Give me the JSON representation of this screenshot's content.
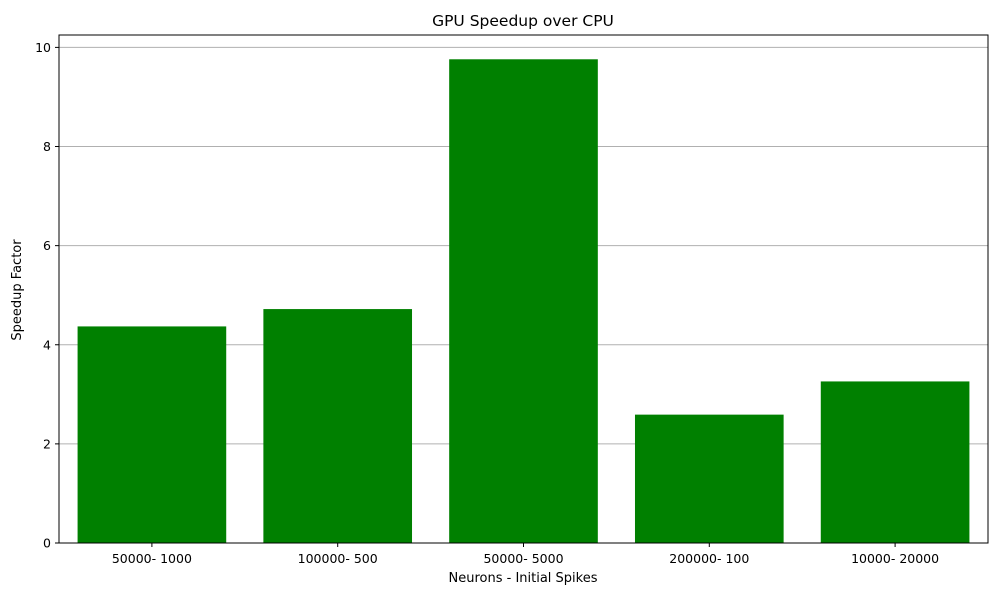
{
  "chart_data": {
    "type": "bar",
    "title": "GPU Speedup over CPU",
    "xlabel": "Neurons - Initial Spikes",
    "ylabel": "Speedup Factor",
    "categories": [
      "50000- 1000",
      "100000- 500",
      "50000- 5000",
      "200000- 100",
      "10000- 20000"
    ],
    "values": [
      4.37,
      4.72,
      9.76,
      2.59,
      3.26
    ],
    "ylim": [
      0,
      10.25
    ],
    "yticks": [
      0,
      2,
      4,
      6,
      8,
      10
    ],
    "grid": {
      "axis": "y",
      "enabled": true
    },
    "legend": "none",
    "bar_color": "#008000",
    "grid_color": "#b0b0b0"
  }
}
